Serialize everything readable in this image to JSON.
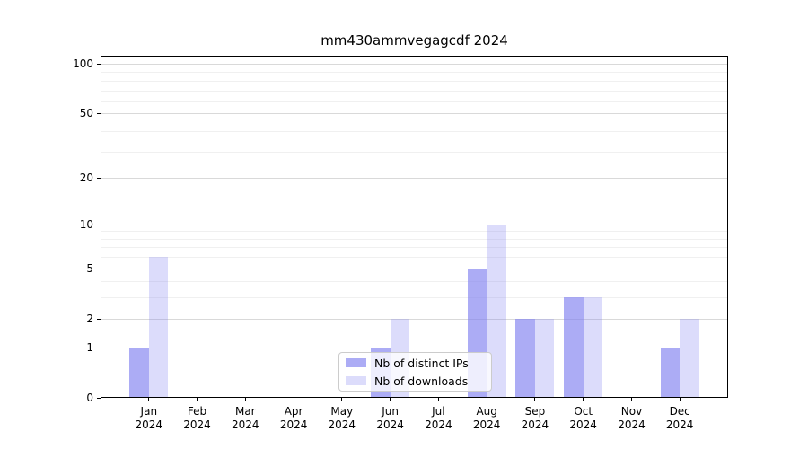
{
  "chart_data": {
    "type": "bar",
    "title": "mm430ammvegagcdf 2024",
    "categories": [
      "Jan",
      "Feb",
      "Mar",
      "Apr",
      "May",
      "Jun",
      "Jul",
      "Aug",
      "Sep",
      "Oct",
      "Nov",
      "Dec"
    ],
    "x_tick_year": "2024",
    "series": [
      {
        "name": "Nb of distinct IPs",
        "color": "rgba(127,127,240,0.65)",
        "values": [
          1,
          0,
          0,
          0,
          0,
          1,
          0,
          5,
          2,
          3,
          0,
          1
        ]
      },
      {
        "name": "Nb of downloads",
        "color": "rgba(127,127,240,0.27)",
        "values": [
          6,
          0,
          0,
          0,
          0,
          2,
          0,
          10,
          2,
          3,
          0,
          2
        ]
      }
    ],
    "yscale": "log1p",
    "ylim": [
      0,
      112
    ],
    "y_major_ticks": [
      0,
      1,
      2,
      5,
      10,
      20,
      50,
      100
    ],
    "y_minor_gridlines": [
      3,
      4,
      6,
      7,
      8,
      9,
      29,
      39,
      59,
      69,
      79,
      89
    ],
    "grid": true,
    "legend_position": "lower center",
    "colors": {
      "grid_major": "#d9d9d9",
      "grid_minor": "#f0f0f0",
      "spine": "#000000",
      "background": "#ffffff"
    }
  }
}
